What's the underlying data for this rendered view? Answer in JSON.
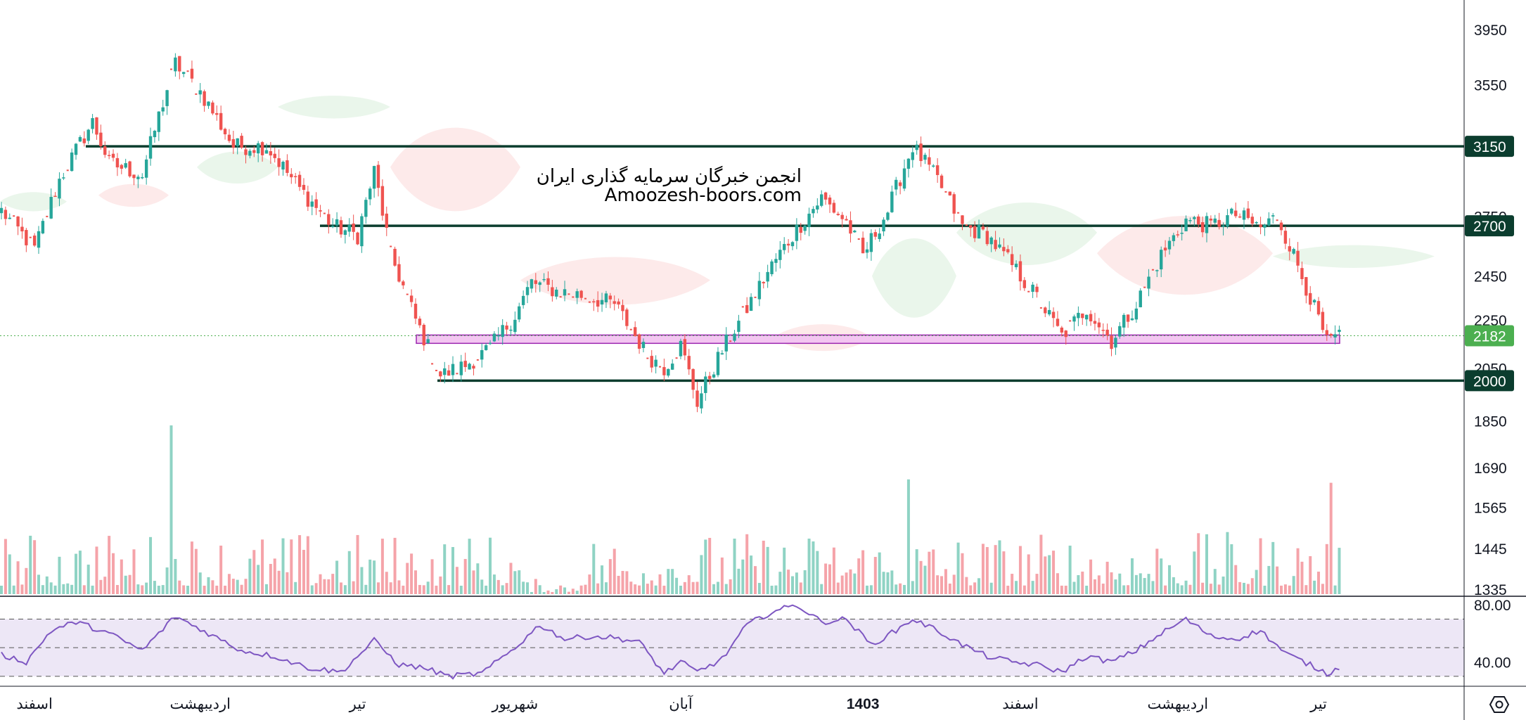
{
  "watermark": {
    "line1": "انجمن خبرگان سرمایه گذاری ایران",
    "line2": "Amoozesh-boors.com"
  },
  "colors": {
    "up": "#26a69a",
    "down": "#ef5350",
    "up_soft": "#8fd3c4",
    "down_soft": "#f5a3a9",
    "level_line": "#0b3d2e",
    "support_zone_fill": "#f3c6f1",
    "support_zone_stroke": "#9c27b0",
    "last_price": "#4caf50",
    "rsi_line": "#7e57c2",
    "rsi_band": "#ede7f6",
    "cloud_green": "#e8f5e9",
    "cloud_red": "#fde8e8"
  },
  "chart_data": [
    {
      "type": "candlestick",
      "title": "",
      "ylim": [
        1335,
        4100
      ],
      "log_scale": true,
      "price_axis_ticks": [
        "3950",
        "3550",
        "2750",
        "2450",
        "2250",
        "2050",
        "1850",
        "1690",
        "1565",
        "1445",
        "1335"
      ],
      "time_axis_labels": [
        {
          "label": "اسفند",
          "x_index": 8
        },
        {
          "label": "اردیبهشت",
          "x_index": 48
        },
        {
          "label": "تیر",
          "x_index": 86
        },
        {
          "label": "شهریور",
          "x_index": 124
        },
        {
          "label": "آبان",
          "x_index": 164
        },
        {
          "label": "1403",
          "x_index": 208,
          "bold": true
        },
        {
          "label": "اسفند",
          "x_index": 246
        },
        {
          "label": "اردیبهشت",
          "x_index": 284
        },
        {
          "label": "تیر",
          "x_index": 318
        }
      ],
      "horizontal_levels": [
        {
          "price": 3150,
          "label": "3150"
        },
        {
          "price": 2700,
          "label": "2700"
        },
        {
          "price": 2000,
          "label": "2000"
        }
      ],
      "support_zone": {
        "low": 2150,
        "high": 2185
      },
      "last_price": {
        "value": 2182,
        "label": "2182"
      },
      "ohlc_keypoints": [
        {
          "i": 0,
          "c": 2780
        },
        {
          "i": 8,
          "c": 2580
        },
        {
          "i": 14,
          "c": 2950
        },
        {
          "i": 22,
          "c": 3300
        },
        {
          "i": 26,
          "c": 3050
        },
        {
          "i": 34,
          "c": 2980
        },
        {
          "i": 42,
          "c": 3700
        },
        {
          "i": 48,
          "c": 3500
        },
        {
          "i": 56,
          "c": 3150
        },
        {
          "i": 64,
          "c": 3150
        },
        {
          "i": 72,
          "c": 2900
        },
        {
          "i": 80,
          "c": 2700
        },
        {
          "i": 86,
          "c": 2650
        },
        {
          "i": 90,
          "c": 3000
        },
        {
          "i": 94,
          "c": 2550
        },
        {
          "i": 100,
          "c": 2250
        },
        {
          "i": 106,
          "c": 2020
        },
        {
          "i": 112,
          "c": 2060
        },
        {
          "i": 118,
          "c": 2130
        },
        {
          "i": 124,
          "c": 2270
        },
        {
          "i": 128,
          "c": 2420
        },
        {
          "i": 134,
          "c": 2380
        },
        {
          "i": 140,
          "c": 2360
        },
        {
          "i": 148,
          "c": 2320
        },
        {
          "i": 156,
          "c": 2100
        },
        {
          "i": 160,
          "c": 2050
        },
        {
          "i": 164,
          "c": 2140
        },
        {
          "i": 168,
          "c": 1920
        },
        {
          "i": 174,
          "c": 2120
        },
        {
          "i": 180,
          "c": 2300
        },
        {
          "i": 186,
          "c": 2500
        },
        {
          "i": 192,
          "c": 2680
        },
        {
          "i": 198,
          "c": 2850
        },
        {
          "i": 204,
          "c": 2720
        },
        {
          "i": 208,
          "c": 2550
        },
        {
          "i": 214,
          "c": 2780
        },
        {
          "i": 220,
          "c": 3150
        },
        {
          "i": 226,
          "c": 2950
        },
        {
          "i": 232,
          "c": 2700
        },
        {
          "i": 238,
          "c": 2650
        },
        {
          "i": 244,
          "c": 2500
        },
        {
          "i": 250,
          "c": 2350
        },
        {
          "i": 256,
          "c": 2180
        },
        {
          "i": 262,
          "c": 2300
        },
        {
          "i": 268,
          "c": 2160
        },
        {
          "i": 274,
          "c": 2320
        },
        {
          "i": 280,
          "c": 2550
        },
        {
          "i": 286,
          "c": 2730
        },
        {
          "i": 292,
          "c": 2700
        },
        {
          "i": 298,
          "c": 2760
        },
        {
          "i": 304,
          "c": 2690
        },
        {
          "i": 308,
          "c": 2750
        },
        {
          "i": 312,
          "c": 2550
        },
        {
          "i": 316,
          "c": 2350
        },
        {
          "i": 320,
          "c": 2150
        },
        {
          "i": 323,
          "c": 2182
        }
      ]
    },
    {
      "type": "bar",
      "title": "Volume",
      "note": "volume histogram beneath price, colored by candle direction",
      "spikes": [
        {
          "i": 41,
          "v": 1.0
        },
        {
          "i": 219,
          "v": 0.68
        },
        {
          "i": 321,
          "v": 0.66
        }
      ]
    },
    {
      "type": "line",
      "title": "RSI",
      "ylim": [
        25,
        85
      ],
      "axis_ticks": [
        "80.00",
        "40.00"
      ],
      "band": [
        30,
        70
      ],
      "keypoints": [
        {
          "i": 0,
          "v": 45
        },
        {
          "i": 6,
          "v": 40
        },
        {
          "i": 12,
          "v": 62
        },
        {
          "i": 18,
          "v": 68
        },
        {
          "i": 26,
          "v": 60
        },
        {
          "i": 34,
          "v": 48
        },
        {
          "i": 42,
          "v": 72
        },
        {
          "i": 50,
          "v": 60
        },
        {
          "i": 58,
          "v": 48
        },
        {
          "i": 66,
          "v": 44
        },
        {
          "i": 74,
          "v": 36
        },
        {
          "i": 82,
          "v": 33
        },
        {
          "i": 90,
          "v": 55
        },
        {
          "i": 96,
          "v": 38
        },
        {
          "i": 102,
          "v": 36
        },
        {
          "i": 108,
          "v": 30
        },
        {
          "i": 116,
          "v": 32
        },
        {
          "i": 124,
          "v": 50
        },
        {
          "i": 130,
          "v": 66
        },
        {
          "i": 136,
          "v": 56
        },
        {
          "i": 142,
          "v": 58
        },
        {
          "i": 148,
          "v": 57
        },
        {
          "i": 154,
          "v": 54
        },
        {
          "i": 160,
          "v": 32
        },
        {
          "i": 164,
          "v": 40
        },
        {
          "i": 168,
          "v": 33
        },
        {
          "i": 174,
          "v": 42
        },
        {
          "i": 180,
          "v": 66
        },
        {
          "i": 186,
          "v": 75
        },
        {
          "i": 192,
          "v": 80
        },
        {
          "i": 198,
          "v": 68
        },
        {
          "i": 204,
          "v": 70
        },
        {
          "i": 210,
          "v": 52
        },
        {
          "i": 216,
          "v": 62
        },
        {
          "i": 220,
          "v": 70
        },
        {
          "i": 226,
          "v": 62
        },
        {
          "i": 232,
          "v": 52
        },
        {
          "i": 238,
          "v": 44
        },
        {
          "i": 244,
          "v": 40
        },
        {
          "i": 250,
          "v": 38
        },
        {
          "i": 256,
          "v": 33
        },
        {
          "i": 262,
          "v": 44
        },
        {
          "i": 268,
          "v": 40
        },
        {
          "i": 274,
          "v": 48
        },
        {
          "i": 280,
          "v": 60
        },
        {
          "i": 286,
          "v": 70
        },
        {
          "i": 292,
          "v": 58
        },
        {
          "i": 298,
          "v": 56
        },
        {
          "i": 304,
          "v": 62
        },
        {
          "i": 310,
          "v": 46
        },
        {
          "i": 316,
          "v": 38
        },
        {
          "i": 320,
          "v": 32
        },
        {
          "i": 323,
          "v": 36
        }
      ]
    }
  ],
  "toolbar": {
    "settings_icon": "hexagon-settings-icon"
  }
}
